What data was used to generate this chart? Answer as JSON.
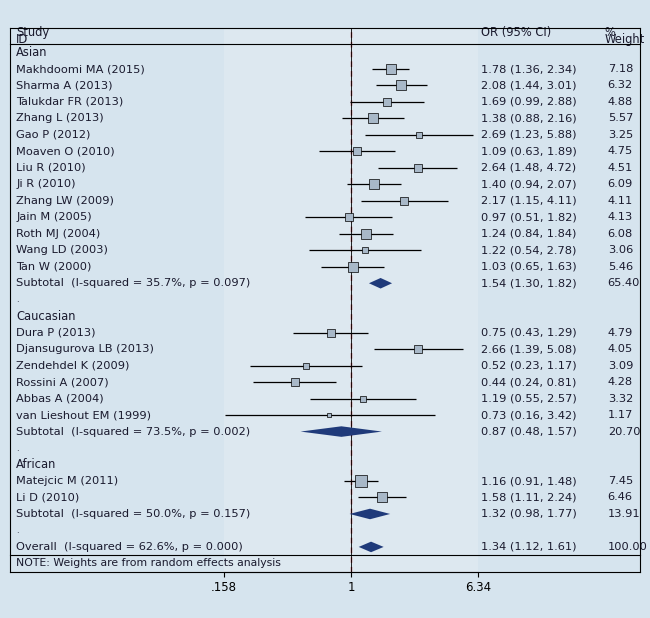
{
  "studies": [
    {
      "group": "Asian",
      "label": "Makhdoomi MA (2015)",
      "or": 1.78,
      "ci_lo": 1.36,
      "ci_hi": 2.34,
      "weight": 7.18
    },
    {
      "group": "Asian",
      "label": "Sharma A (2013)",
      "or": 2.08,
      "ci_lo": 1.44,
      "ci_hi": 3.01,
      "weight": 6.32
    },
    {
      "group": "Asian",
      "label": "Talukdar FR (2013)",
      "or": 1.69,
      "ci_lo": 0.99,
      "ci_hi": 2.88,
      "weight": 4.88
    },
    {
      "group": "Asian",
      "label": "Zhang L (2013)",
      "or": 1.38,
      "ci_lo": 0.88,
      "ci_hi": 2.16,
      "weight": 5.57
    },
    {
      "group": "Asian",
      "label": "Gao P (2012)",
      "or": 2.69,
      "ci_lo": 1.23,
      "ci_hi": 5.88,
      "weight": 3.25
    },
    {
      "group": "Asian",
      "label": "Moaven O (2010)",
      "or": 1.09,
      "ci_lo": 0.63,
      "ci_hi": 1.89,
      "weight": 4.75
    },
    {
      "group": "Asian",
      "label": "Liu R (2010)",
      "or": 2.64,
      "ci_lo": 1.48,
      "ci_hi": 4.72,
      "weight": 4.51
    },
    {
      "group": "Asian",
      "label": "Ji R (2010)",
      "or": 1.4,
      "ci_lo": 0.94,
      "ci_hi": 2.07,
      "weight": 6.09
    },
    {
      "group": "Asian",
      "label": "Zhang LW (2009)",
      "or": 2.17,
      "ci_lo": 1.15,
      "ci_hi": 4.11,
      "weight": 4.11
    },
    {
      "group": "Asian",
      "label": "Jain M (2005)",
      "or": 0.97,
      "ci_lo": 0.51,
      "ci_hi": 1.82,
      "weight": 4.13
    },
    {
      "group": "Asian",
      "label": "Roth MJ (2004)",
      "or": 1.24,
      "ci_lo": 0.84,
      "ci_hi": 1.84,
      "weight": 6.08
    },
    {
      "group": "Asian",
      "label": "Wang LD (2003)",
      "or": 1.22,
      "ci_lo": 0.54,
      "ci_hi": 2.78,
      "weight": 3.06
    },
    {
      "group": "Asian",
      "label": "Tan W (2000)",
      "or": 1.03,
      "ci_lo": 0.65,
      "ci_hi": 1.63,
      "weight": 5.46
    },
    {
      "group": "Asian_sub",
      "label": "Subtotal  (I-squared = 35.7%, p = 0.097)",
      "or": 1.54,
      "ci_lo": 1.3,
      "ci_hi": 1.82,
      "weight": 65.4
    },
    {
      "group": "Caucasian",
      "label": "Dura P (2013)",
      "or": 0.75,
      "ci_lo": 0.43,
      "ci_hi": 1.29,
      "weight": 4.79
    },
    {
      "group": "Caucasian",
      "label": "Djansugurova LB (2013)",
      "or": 2.66,
      "ci_lo": 1.39,
      "ci_hi": 5.08,
      "weight": 4.05
    },
    {
      "group": "Caucasian",
      "label": "Zendehdel K (2009)",
      "or": 0.52,
      "ci_lo": 0.23,
      "ci_hi": 1.17,
      "weight": 3.09
    },
    {
      "group": "Caucasian",
      "label": "Rossini A (2007)",
      "or": 0.44,
      "ci_lo": 0.24,
      "ci_hi": 0.81,
      "weight": 4.28
    },
    {
      "group": "Caucasian",
      "label": "Abbas A (2004)",
      "or": 1.19,
      "ci_lo": 0.55,
      "ci_hi": 2.57,
      "weight": 3.32
    },
    {
      "group": "Caucasian",
      "label": "van Lieshout EM (1999)",
      "or": 0.73,
      "ci_lo": 0.16,
      "ci_hi": 3.42,
      "weight": 1.17
    },
    {
      "group": "Caucasian_sub",
      "label": "Subtotal  (I-squared = 73.5%, p = 0.002)",
      "or": 0.87,
      "ci_lo": 0.48,
      "ci_hi": 1.57,
      "weight": 20.7
    },
    {
      "group": "African",
      "label": "Matejcic M (2011)",
      "or": 1.16,
      "ci_lo": 0.91,
      "ci_hi": 1.48,
      "weight": 7.45
    },
    {
      "group": "African",
      "label": "Li D (2010)",
      "or": 1.58,
      "ci_lo": 1.11,
      "ci_hi": 2.24,
      "weight": 6.46
    },
    {
      "group": "African_sub",
      "label": "Subtotal  (I-squared = 50.0%, p = 0.157)",
      "or": 1.32,
      "ci_lo": 0.98,
      "ci_hi": 1.77,
      "weight": 13.91
    },
    {
      "group": "Overall",
      "label": "Overall  (I-squared = 62.6%, p = 0.000)",
      "or": 1.34,
      "ci_lo": 1.12,
      "ci_hi": 1.61,
      "weight": 100.0
    }
  ],
  "xmin": 0.158,
  "xmax": 6.34,
  "xtick_locs": [
    0.158,
    1.0,
    6.34
  ],
  "xtick_labels": [
    ".158",
    "1",
    "6.34"
  ],
  "bg_color": "#d6e4ee",
  "inner_bg_color": "#dde8f0",
  "diamond_color": "#1f3a7a",
  "square_color": "#a8b8c8",
  "square_edge_color": "#000000",
  "ci_color": "#000000",
  "dashed_color": "#b03030",
  "solid_line_color": "#000000",
  "text_color": "#1a1a2e",
  "note": "NOTE: Weights are from random effects analysis",
  "max_marker_weight": 7.45
}
